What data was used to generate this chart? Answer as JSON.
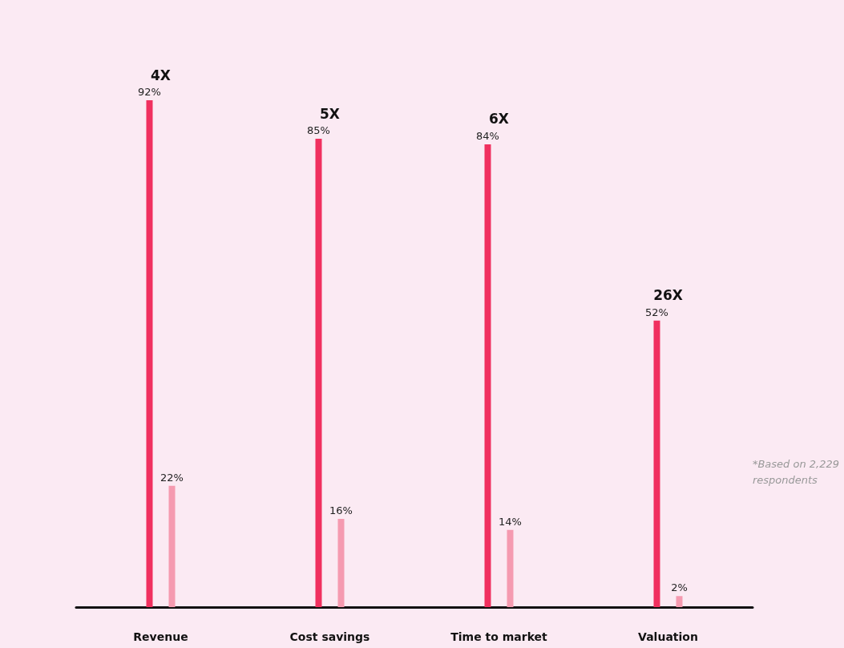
{
  "chart_data": {
    "type": "bar",
    "categories": [
      "Revenue",
      "Cost savings",
      "Time to market",
      "Valuation"
    ],
    "series": [
      {
        "color": "#f0305f",
        "values": [
          92,
          85,
          84,
          52
        ],
        "value_labels": [
          "92%",
          "85%",
          "84%",
          "52%"
        ]
      },
      {
        "color": "#f59ab0",
        "values": [
          22,
          16,
          14,
          2
        ],
        "value_labels": [
          "22%",
          "16%",
          "14%",
          "2%"
        ]
      }
    ],
    "annotations": [
      "4X",
      "5X",
      "6X",
      "26X",
      "*Based on 2,229 respondents"
    ],
    "grid": false
  }
}
